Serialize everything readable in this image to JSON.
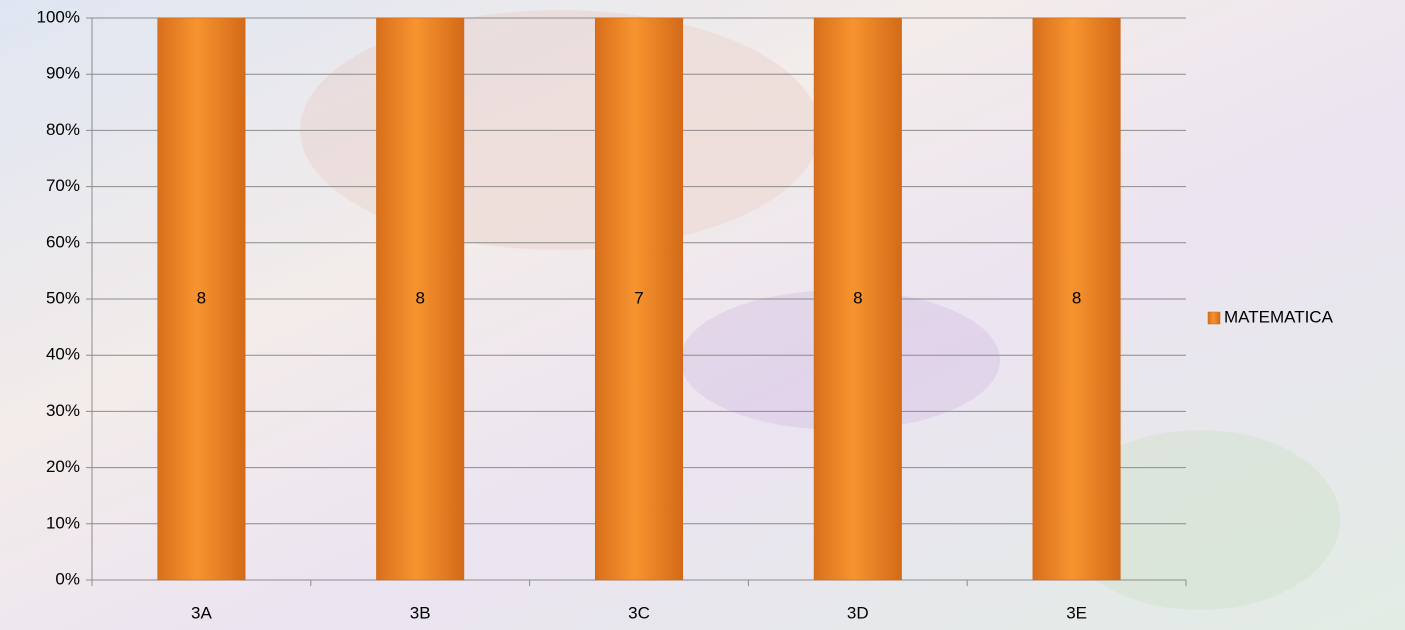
{
  "chart_data": {
    "type": "bar",
    "stacking": "percent",
    "categories": [
      "3A",
      "3B",
      "3C",
      "3D",
      "3E"
    ],
    "series": [
      {
        "name": "MATEMATICA",
        "color": "#f28c28",
        "values": [
          8,
          8,
          7,
          8,
          8
        ]
      }
    ],
    "ylim": [
      0,
      100
    ],
    "yticks": [
      {
        "value": 0,
        "label": "0%"
      },
      {
        "value": 10,
        "label": "10%"
      },
      {
        "value": 20,
        "label": "20%"
      },
      {
        "value": 30,
        "label": "30%"
      },
      {
        "value": 40,
        "label": "40%"
      },
      {
        "value": 50,
        "label": "50%"
      },
      {
        "value": 60,
        "label": "60%"
      },
      {
        "value": 70,
        "label": "70%"
      },
      {
        "value": 80,
        "label": "80%"
      },
      {
        "value": 90,
        "label": "90%"
      },
      {
        "value": 100,
        "label": "100%"
      }
    ],
    "grid": true,
    "legend": "right"
  }
}
